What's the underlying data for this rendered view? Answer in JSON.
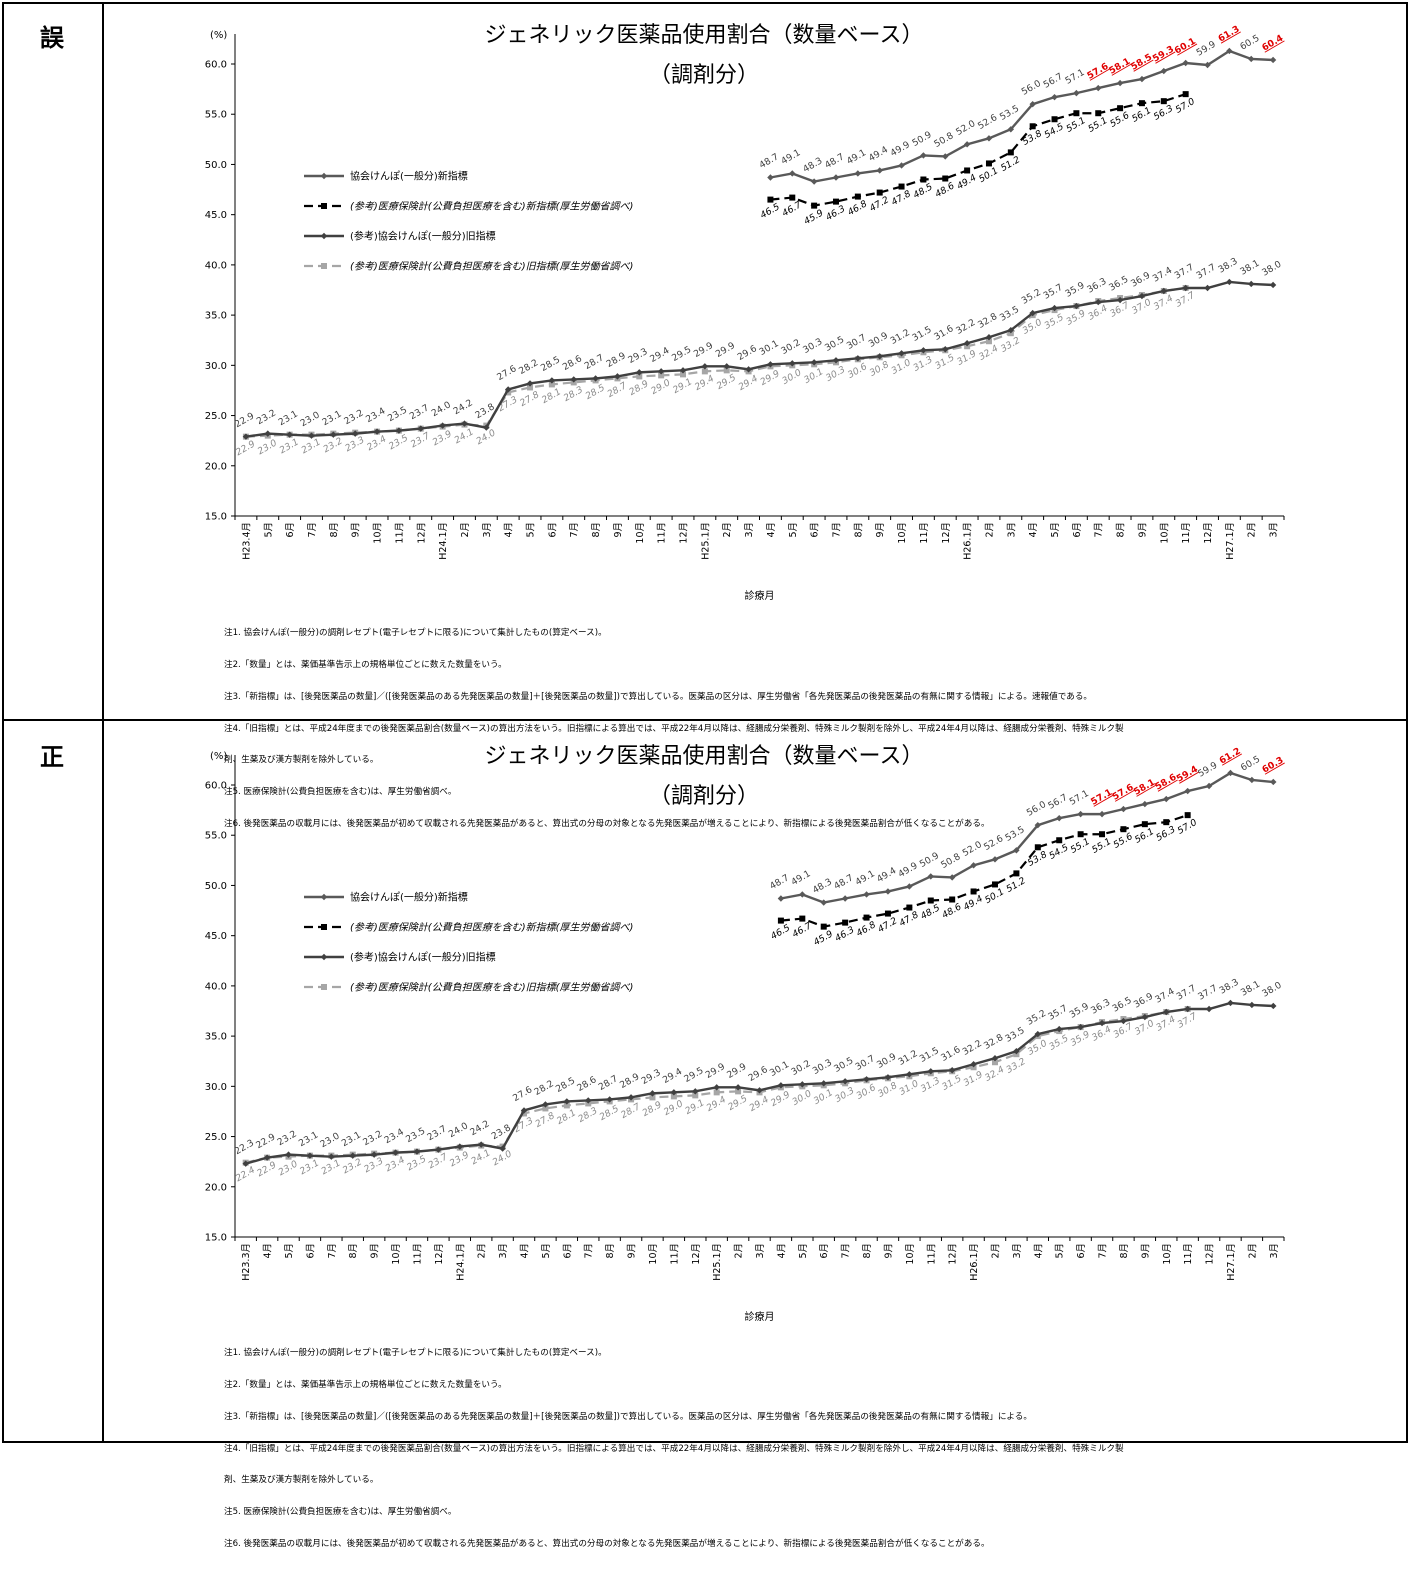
{
  "panels": [
    {
      "label": "誤",
      "title1": "ジェネリック医薬品使用割合（数量ベース）",
      "title2": "（調剤分）",
      "ylabel": "(%)",
      "xlabel": "診療月",
      "yticks": [
        "15.0",
        "20.0",
        "25.0",
        "30.0",
        "35.0",
        "40.0",
        "45.0",
        "50.0",
        "55.0",
        "60.0"
      ],
      "xticks": [
        "H23.4月",
        "5月",
        "6月",
        "7月",
        "8月",
        "9月",
        "10月",
        "11月",
        "12月",
        "H24.1月",
        "2月",
        "3月",
        "4月",
        "5月",
        "6月",
        "7月",
        "8月",
        "9月",
        "10月",
        "11月",
        "12月",
        "H25.1月",
        "2月",
        "3月",
        "4月",
        "5月",
        "6月",
        "7月",
        "8月",
        "9月",
        "10月",
        "11月",
        "12月",
        "H26.1月",
        "2月",
        "3月",
        "4月",
        "5月",
        "6月",
        "7月",
        "8月",
        "9月",
        "10月",
        "11月",
        "12月",
        "H27.1月",
        "2月",
        "3月"
      ],
      "legend": [
        "協会けんぽ(一般分)新指標",
        "(参考)医療保険計(公費負担医療を含む)新指標(厚生労働省調べ)",
        "(参考)協会けんぽ(一般分)旧指標",
        "(参考)医療保険計(公費負担医療を含む)旧指標(厚生労働省調べ)"
      ],
      "chart_data": {
        "type": "line",
        "ylim": [
          15,
          60
        ],
        "series": [
          {
            "name": "協会けんぽ(一般分)新指標",
            "start": 24,
            "color": "#595959",
            "values": [
              48.7,
              49.1,
              48.3,
              48.7,
              49.1,
              49.4,
              49.9,
              50.9,
              50.8,
              52.0,
              52.6,
              53.5,
              56.0,
              56.7,
              57.1,
              57.6,
              58.1,
              58.5,
              59.3,
              60.1,
              59.9,
              61.3,
              60.5,
              60.4
            ],
            "labels": [
              "48.7",
              "49.1",
              "48.3",
              "48.7",
              "49.1",
              "49.4",
              "49.9",
              "50.9",
              "50.8",
              "52.0",
              "52.6",
              "53.5",
              "56.0",
              "56.7",
              "57.1",
              "57.6",
              "58.1",
              "58.5",
              "59.3",
              "60.1",
              "59.9",
              "61.3",
              "60.5",
              "60.4"
            ],
            "red": [
              15,
              16,
              17,
              18,
              19,
              21,
              23
            ]
          },
          {
            "name": "(参考)医療保険計(公費負担医療を含む)新指標(厚生労働省調べ)",
            "start": 24,
            "color": "#000000",
            "values": [
              46.5,
              46.7,
              45.9,
              46.3,
              46.8,
              47.2,
              47.8,
              48.5,
              48.6,
              49.4,
              50.1,
              51.2,
              53.8,
              54.5,
              55.1,
              55.1,
              55.6,
              56.1,
              56.3,
              57.0
            ],
            "labels": [
              "46.5",
              "46.7",
              "45.9",
              "46.3",
              "46.8",
              "47.2",
              "47.8",
              "48.5",
              "48.6",
              "49.4",
              "50.1",
              "51.2",
              "53.8",
              "54.5",
              "55.1",
              "55.1",
              "55.6",
              "56.1",
              "56.3",
              "57.0"
            ]
          },
          {
            "name": "(参考)協会けんぽ(一般分)旧指標",
            "start": 0,
            "color": "#404040",
            "values": [
              22.9,
              23.2,
              23.1,
              23.0,
              23.1,
              23.2,
              23.4,
              23.5,
              23.7,
              24.0,
              24.2,
              23.8,
              27.6,
              28.2,
              28.5,
              28.6,
              28.7,
              28.9,
              29.3,
              29.4,
              29.5,
              29.9,
              29.9,
              29.6,
              30.1,
              30.2,
              30.3,
              30.5,
              30.7,
              30.9,
              31.2,
              31.5,
              31.6,
              32.2,
              32.8,
              33.5,
              35.2,
              35.7,
              35.9,
              36.3,
              36.5,
              36.9,
              37.4,
              37.7,
              37.7,
              38.3,
              38.1,
              38.0
            ],
            "labels": [
              "22.9",
              "23.2",
              "23.1",
              "23.0",
              "23.1",
              "23.2",
              "23.4",
              "23.5",
              "23.7",
              "24.0",
              "24.2",
              "23.8",
              "27.6",
              "28.2",
              "28.5",
              "28.6",
              "28.7",
              "28.9",
              "29.3",
              "29.4",
              "29.5",
              "29.9",
              "29.9",
              "29.6",
              "30.1",
              "30.2",
              "30.3",
              "30.5",
              "30.7",
              "30.9",
              "31.2",
              "31.5",
              "31.6",
              "32.2",
              "32.8",
              "33.5",
              "35.2",
              "35.7",
              "35.9",
              "36.3",
              "36.5",
              "36.9",
              "37.4",
              "37.7",
              "37.7",
              "38.3",
              "38.1",
              "38.0"
            ]
          },
          {
            "name": "(参考)医療保険計(公費負担医療を含む)旧指標(厚生労働省調べ)",
            "start": 0,
            "color": "#a6a6a6",
            "values": [
              22.9,
              23.0,
              23.1,
              23.1,
              23.2,
              23.3,
              23.4,
              23.5,
              23.7,
              23.9,
              24.1,
              24.0,
              27.3,
              27.8,
              28.1,
              28.3,
              28.5,
              28.7,
              28.9,
              29.0,
              29.1,
              29.4,
              29.5,
              29.4,
              29.9,
              30.0,
              30.1,
              30.3,
              30.6,
              30.8,
              31.0,
              31.3,
              31.5,
              31.9,
              32.4,
              33.2,
              35.0,
              35.5,
              35.9,
              36.4,
              36.7,
              37.0,
              37.4,
              37.7
            ],
            "labels": [
              "22.9",
              "23.0",
              "23.1",
              "23.1",
              "23.2",
              "23.3",
              "23.4",
              "23.5",
              "23.7",
              "23.9",
              "24.1",
              "24.0",
              "27.3",
              "27.8",
              "28.1",
              "28.3",
              "28.5",
              "28.7",
              "28.9",
              "29.0",
              "29.1",
              "29.4",
              "29.5",
              "29.4",
              "29.9",
              "30.0",
              "30.1",
              "30.3",
              "30.6",
              "30.8",
              "31.0",
              "31.3",
              "31.5",
              "31.9",
              "32.4",
              "33.2",
              "35.0",
              "35.5",
              "35.9",
              "36.4",
              "36.7",
              "37.0",
              "37.4",
              "37.7"
            ]
          }
        ]
      },
      "notes": [
        "注1. 協会けんぽ(一般分)の調剤レセプト(電子レセプトに限る)について集計したもの(算定ベース)。",
        "注2.「数量」とは、薬価基準告示上の規格単位ごとに数えた数量をいう。",
        "注3.「新指標」は、[後発医薬品の数量]／([後発医薬品のある先発医薬品の数量]＋[後発医薬品の数量])で算出している。医薬品の区分は、厚生労働省「各先発医薬品の後発医薬品の有無に関する情報」による。速報値である。",
        "注4.「旧指標」とは、平成24年度までの後発医薬品割合(数量ベース)の算出方法をいう。旧指標による算出では、平成22年4月以降は、経腸成分栄養剤、特殊ミルク製剤を除外し、平成24年4月以降は、経腸成分栄養剤、特殊ミルク製",
        "剤、生薬及び漢方製剤を除外している。",
        "注5. 医療保険計(公費負担医療を含む)は、厚生労働省調べ。",
        "注6. 後発医薬品の収載月には、後発医薬品が初めて収載される先発医薬品があると、算出式の分母の対象となる先発医薬品が増えることにより、新指標による後発医薬品割合が低くなることがある。"
      ]
    },
    {
      "label": "正",
      "title1": "ジェネリック医薬品使用割合（数量ベース）",
      "title2": "（調剤分）",
      "ylabel": "(%)",
      "xlabel": "診療月",
      "yticks": [
        "15.0",
        "20.0",
        "25.0",
        "30.0",
        "35.0",
        "40.0",
        "45.0",
        "50.0",
        "55.0",
        "60.0"
      ],
      "xticks": [
        "H23.3月",
        "4月",
        "5月",
        "6月",
        "7月",
        "8月",
        "9月",
        "10月",
        "11月",
        "12月",
        "H24.1月",
        "2月",
        "3月",
        "4月",
        "5月",
        "6月",
        "7月",
        "8月",
        "9月",
        "10月",
        "11月",
        "12月",
        "H25.1月",
        "2月",
        "3月",
        "4月",
        "5月",
        "6月",
        "7月",
        "8月",
        "9月",
        "10月",
        "11月",
        "12月",
        "H26.1月",
        "2月",
        "3月",
        "4月",
        "5月",
        "6月",
        "7月",
        "8月",
        "9月",
        "10月",
        "11月",
        "12月",
        "H27.1月",
        "2月",
        "3月"
      ],
      "legend": [
        "協会けんぽ(一般分)新指標",
        "(参考)医療保険計(公費負担医療を含む)新指標(厚生労働省調べ)",
        "(参考)協会けんぽ(一般分)旧指標",
        "(参考)医療保険計(公費負担医療を含む)旧指標(厚生労働省調べ)"
      ],
      "chart_data": {
        "type": "line",
        "ylim": [
          15,
          60
        ],
        "series": [
          {
            "name": "協会けんぽ(一般分)新指標",
            "start": 25,
            "color": "#595959",
            "values": [
              48.7,
              49.1,
              48.3,
              48.7,
              49.1,
              49.4,
              49.9,
              50.9,
              50.8,
              52.0,
              52.6,
              53.5,
              56.0,
              56.7,
              57.1,
              57.1,
              57.6,
              58.1,
              58.6,
              59.4,
              59.9,
              61.2,
              60.5,
              60.3
            ],
            "labels": [
              "48.7",
              "49.1",
              "48.3",
              "48.7",
              "49.1",
              "49.4",
              "49.9",
              "50.9",
              "50.8",
              "52.0",
              "52.6",
              "53.5",
              "56.0",
              "56.7",
              "57.1",
              "57.1",
              "57.6",
              "58.1",
              "58.6",
              "59.4",
              "59.9",
              "61.2",
              "60.5",
              "60.3"
            ],
            "red": [
              15,
              16,
              17,
              18,
              19,
              21,
              23
            ]
          },
          {
            "name": "(参考)医療保険計(公費負担医療を含む)新指標(厚生労働省調べ)",
            "start": 25,
            "color": "#000000",
            "values": [
              46.5,
              46.7,
              45.9,
              46.3,
              46.8,
              47.2,
              47.8,
              48.5,
              48.6,
              49.4,
              50.1,
              51.2,
              53.8,
              54.5,
              55.1,
              55.1,
              55.6,
              56.1,
              56.3,
              57.0
            ],
            "labels": [
              "46.5",
              "46.7",
              "45.9",
              "46.3",
              "46.8",
              "47.2",
              "47.8",
              "48.5",
              "48.6",
              "49.4",
              "50.1",
              "51.2",
              "53.8",
              "54.5",
              "55.1",
              "55.1",
              "55.6",
              "56.1",
              "56.3",
              "57.0"
            ]
          },
          {
            "name": "(参考)協会けんぽ(一般分)旧指標",
            "start": 0,
            "color": "#404040",
            "values": [
              22.3,
              22.9,
              23.2,
              23.1,
              23.0,
              23.1,
              23.2,
              23.4,
              23.5,
              23.7,
              24.0,
              24.2,
              23.8,
              27.6,
              28.2,
              28.5,
              28.6,
              28.7,
              28.9,
              29.3,
              29.4,
              29.5,
              29.9,
              29.9,
              29.6,
              30.1,
              30.2,
              30.3,
              30.5,
              30.7,
              30.9,
              31.2,
              31.5,
              31.6,
              32.2,
              32.8,
              33.5,
              35.2,
              35.7,
              35.9,
              36.3,
              36.5,
              36.9,
              37.4,
              37.7,
              37.7,
              38.3,
              38.1,
              38.0
            ],
            "labels": [
              "22.3",
              "22.9",
              "23.2",
              "23.1",
              "23.0",
              "23.1",
              "23.2",
              "23.4",
              "23.5",
              "23.7",
              "24.0",
              "24.2",
              "23.8",
              "27.6",
              "28.2",
              "28.5",
              "28.6",
              "28.7",
              "28.9",
              "29.3",
              "29.4",
              "29.5",
              "29.9",
              "29.9",
              "29.6",
              "30.1",
              "30.2",
              "30.3",
              "30.5",
              "30.7",
              "30.9",
              "31.2",
              "31.5",
              "31.6",
              "32.2",
              "32.8",
              "33.5",
              "35.2",
              "35.7",
              "35.9",
              "36.3",
              "36.5",
              "36.9",
              "37.4",
              "37.7",
              "37.7",
              "38.3",
              "38.1",
              "38.0"
            ]
          },
          {
            "name": "(参考)医療保険計(公費負担医療を含む)旧指標(厚生労働省調べ)",
            "start": 0,
            "color": "#a6a6a6",
            "values": [
              22.4,
              22.9,
              23.0,
              23.1,
              23.1,
              23.2,
              23.3,
              23.4,
              23.5,
              23.7,
              23.9,
              24.1,
              24.0,
              27.3,
              27.8,
              28.1,
              28.3,
              28.5,
              28.7,
              28.9,
              29.0,
              29.1,
              29.4,
              29.5,
              29.4,
              29.9,
              30.0,
              30.1,
              30.3,
              30.6,
              30.8,
              31.0,
              31.3,
              31.5,
              31.9,
              32.4,
              33.2,
              35.0,
              35.5,
              35.9,
              36.4,
              36.7,
              37.0,
              37.4,
              37.7
            ],
            "labels": [
              "22.4",
              "22.9",
              "23.0",
              "23.1",
              "23.1",
              "23.2",
              "23.3",
              "23.4",
              "23.5",
              "23.7",
              "23.9",
              "24.1",
              "24.0",
              "27.3",
              "27.8",
              "28.1",
              "28.3",
              "28.5",
              "28.7",
              "28.9",
              "29.0",
              "29.1",
              "29.4",
              "29.5",
              "29.4",
              "29.9",
              "30.0",
              "30.1",
              "30.3",
              "30.6",
              "30.8",
              "31.0",
              "31.3",
              "31.5",
              "31.9",
              "32.4",
              "33.2",
              "35.0",
              "35.5",
              "35.9",
              "36.4",
              "36.7",
              "37.0",
              "37.4",
              "37.7"
            ]
          }
        ]
      },
      "notes": [
        "注1. 協会けんぽ(一般分)の調剤レセプト(電子レセプトに限る)について集計したもの(算定ベース)。",
        "注2.「数量」とは、薬価基準告示上の規格単位ごとに数えた数量をいう。",
        "注3.「新指標」は、[後発医薬品の数量]／([後発医薬品のある先発医薬品の数量]＋[後発医薬品の数量])で算出している。医薬品の区分は、厚生労働省「各先発医薬品の後発医薬品の有無に関する情報」による。",
        "注4.「旧指標」とは、平成24年度までの後発医薬品割合(数量ベース)の算出方法をいう。旧指標による算出では、平成22年4月以降は、経腸成分栄養剤、特殊ミルク製剤を除外し、平成24年4月以降は、経腸成分栄養剤、特殊ミルク製",
        "剤、生薬及び漢方製剤を除外している。",
        "注5. 医療保険計(公費負担医療を含む)は、厚生労働省調べ。",
        "注6. 後発医薬品の収載月には、後発医薬品が初めて収載される先発医薬品があると、算出式の分母の対象となる先発医薬品が増えることにより、新指標による後発医薬品割合が低くなることがある。"
      ]
    }
  ]
}
